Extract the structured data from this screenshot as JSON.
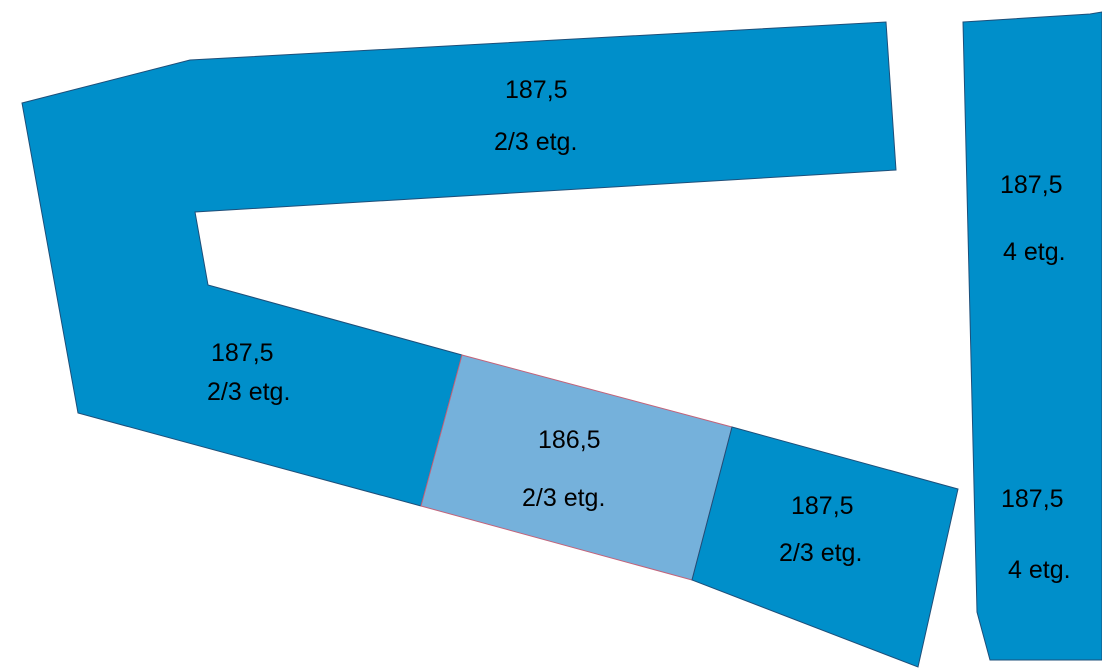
{
  "colors": {
    "block_dark": "#008fca",
    "block_light": "#75b1db",
    "outline_dark": "#1d4f7a",
    "outline_light": "#c2637a"
  },
  "blocks": [
    {
      "id": "north",
      "height": "187,5",
      "floors": "2/3 etg.",
      "shade": "dark"
    },
    {
      "id": "west",
      "height": "187,5",
      "floors": "2/3 etg.",
      "shade": "dark"
    },
    {
      "id": "middle",
      "height": "186,5",
      "floors": "2/3 etg.",
      "shade": "light"
    },
    {
      "id": "southeast",
      "height": "187,5",
      "floors": "2/3 etg.",
      "shade": "dark"
    },
    {
      "id": "east-upper",
      "height": "187,5",
      "floors": "4 etg.",
      "shade": "dark"
    },
    {
      "id": "east-lower",
      "height": "187,5",
      "floors": "4 etg.",
      "shade": "dark"
    }
  ]
}
